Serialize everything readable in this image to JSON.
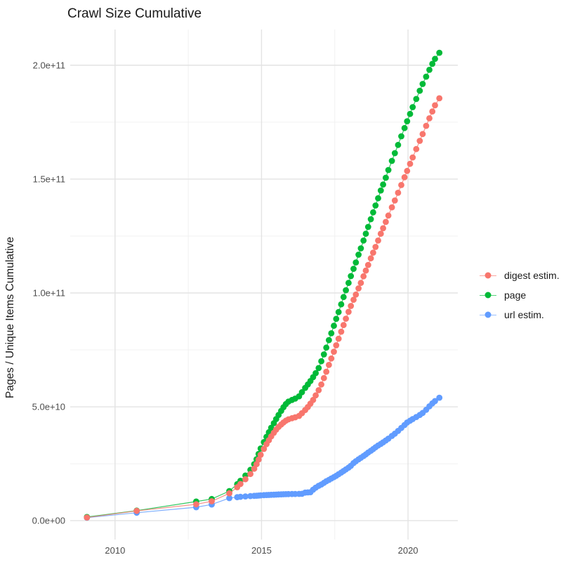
{
  "chart": {
    "title": "Crawl Size Cumulative",
    "y_axis_title": "Pages / Unique Items Cumulative"
  },
  "colors": {
    "grid_major": "#e3e3e3",
    "grid_minor": "#f0f0f0",
    "tick_label": "#4d4d4d",
    "title_text": "#1a1a1a",
    "background": "#ffffff"
  },
  "chart_data": {
    "type": "scatter",
    "title": "Crawl Size Cumulative",
    "xlabel": "",
    "ylabel": "Pages / Unique Items Cumulative",
    "value_unit": "1e9",
    "xlim": [
      2008.47,
      2021.7
    ],
    "ylim": [
      -8.3,
      215.7
    ],
    "grid": "on",
    "legend_position": "right",
    "x_major": [
      {
        "v": 2010,
        "label": "2010"
      },
      {
        "v": 2015,
        "label": "2015"
      },
      {
        "v": 2020,
        "label": "2020"
      }
    ],
    "x_minor": [
      2012.5,
      2017.5
    ],
    "y_major": [
      {
        "v": 0,
        "label": "0.0e+00"
      },
      {
        "v": 50,
        "label": "5.0e+10"
      },
      {
        "v": 100,
        "label": "1.0e+11"
      },
      {
        "v": 150,
        "label": "1.5e+11"
      },
      {
        "v": 200,
        "label": "2.0e+11"
      }
    ],
    "y_minor": [
      25,
      75,
      125,
      175
    ],
    "series": [
      {
        "id": "digest-estim",
        "label": "digest estim.",
        "color": "#F8766D",
        "z": 3,
        "points": [
          [
            2009.04,
            1.4
          ],
          [
            2010.74,
            4.3
          ],
          [
            2012.77,
            7.2
          ],
          [
            2013.3,
            8.5
          ],
          [
            2013.9,
            12.0
          ],
          [
            2014.17,
            14.7
          ],
          [
            2014.28,
            16.1
          ],
          [
            2014.45,
            18.2
          ],
          [
            2014.62,
            20.5
          ],
          [
            2014.75,
            22.8
          ],
          [
            2014.83,
            24.8
          ],
          [
            2014.9,
            26.8
          ],
          [
            2014.97,
            28.9
          ],
          [
            2015.08,
            31.5
          ],
          [
            2015.17,
            33.6
          ],
          [
            2015.25,
            35.3
          ],
          [
            2015.33,
            37.0
          ],
          [
            2015.42,
            38.6
          ],
          [
            2015.5,
            40.0
          ],
          [
            2015.58,
            41.2
          ],
          [
            2015.67,
            42.2
          ],
          [
            2015.75,
            43.1
          ],
          [
            2015.83,
            43.9
          ],
          [
            2015.92,
            44.5
          ],
          [
            2016.04,
            45.0
          ],
          [
            2016.15,
            45.4
          ],
          [
            2016.28,
            46.0
          ],
          [
            2016.38,
            47.2
          ],
          [
            2016.49,
            48.6
          ],
          [
            2016.58,
            49.9
          ],
          [
            2016.67,
            51.4
          ],
          [
            2016.76,
            53.0
          ],
          [
            2016.85,
            55.0
          ],
          [
            2016.95,
            57.3
          ],
          [
            2017.04,
            59.8
          ],
          [
            2017.13,
            62.6
          ],
          [
            2017.21,
            65.4
          ],
          [
            2017.3,
            68.4
          ],
          [
            2017.38,
            71.2
          ],
          [
            2017.47,
            74.2
          ],
          [
            2017.55,
            77.0
          ],
          [
            2017.63,
            79.9
          ],
          [
            2017.72,
            83.0
          ],
          [
            2017.8,
            85.9
          ],
          [
            2017.88,
            88.7
          ],
          [
            2017.97,
            91.7
          ],
          [
            2018.05,
            94.3
          ],
          [
            2018.14,
            97.0
          ],
          [
            2018.22,
            99.3
          ],
          [
            2018.31,
            102.0
          ],
          [
            2018.39,
            104.4
          ],
          [
            2018.48,
            107.3
          ],
          [
            2018.56,
            109.8
          ],
          [
            2018.64,
            112.3
          ],
          [
            2018.73,
            115.2
          ],
          [
            2018.81,
            117.7
          ],
          [
            2018.89,
            120.2
          ],
          [
            2018.98,
            123.0
          ],
          [
            2019.07,
            126.0
          ],
          [
            2019.15,
            128.4
          ],
          [
            2019.24,
            131.2
          ],
          [
            2019.33,
            134.0
          ],
          [
            2019.45,
            137.6
          ],
          [
            2019.55,
            140.6
          ],
          [
            2019.66,
            144.0
          ],
          [
            2019.77,
            147.4
          ],
          [
            2019.88,
            150.8
          ],
          [
            2019.97,
            153.6
          ],
          [
            2020.07,
            156.7
          ],
          [
            2020.16,
            159.5
          ],
          [
            2020.28,
            163.2
          ],
          [
            2020.4,
            166.8
          ],
          [
            2020.5,
            169.8
          ],
          [
            2020.62,
            173.4
          ],
          [
            2020.73,
            176.7
          ],
          [
            2020.83,
            179.7
          ],
          [
            2020.92,
            182.4
          ],
          [
            2021.07,
            185.5
          ]
        ]
      },
      {
        "id": "page",
        "label": "page",
        "color": "#00BA38",
        "z": 2,
        "points": [
          [
            2009.04,
            1.6
          ],
          [
            2010.74,
            4.4
          ],
          [
            2012.77,
            8.4
          ],
          [
            2013.3,
            9.5
          ],
          [
            2013.9,
            13.0
          ],
          [
            2014.17,
            16.0
          ],
          [
            2014.28,
            17.5
          ],
          [
            2014.45,
            19.8
          ],
          [
            2014.62,
            22.3
          ],
          [
            2014.75,
            24.8
          ],
          [
            2014.83,
            27.0
          ],
          [
            2014.9,
            29.3
          ],
          [
            2014.97,
            31.7
          ],
          [
            2015.08,
            34.5
          ],
          [
            2015.17,
            36.8
          ],
          [
            2015.25,
            38.8
          ],
          [
            2015.33,
            40.8
          ],
          [
            2015.42,
            42.8
          ],
          [
            2015.5,
            44.6
          ],
          [
            2015.58,
            46.4
          ],
          [
            2015.67,
            48.2
          ],
          [
            2015.75,
            49.8
          ],
          [
            2015.83,
            51.2
          ],
          [
            2015.92,
            52.3
          ],
          [
            2016.04,
            53.0
          ],
          [
            2016.15,
            53.6
          ],
          [
            2016.28,
            54.6
          ],
          [
            2016.38,
            56.4
          ],
          [
            2016.49,
            58.3
          ],
          [
            2016.58,
            59.8
          ],
          [
            2016.67,
            61.3
          ],
          [
            2016.76,
            63.0
          ],
          [
            2016.85,
            64.8
          ],
          [
            2016.95,
            67.0
          ],
          [
            2017.04,
            70.0
          ],
          [
            2017.13,
            73.0
          ],
          [
            2017.21,
            76.0
          ],
          [
            2017.3,
            79.3
          ],
          [
            2017.38,
            82.3
          ],
          [
            2017.47,
            85.6
          ],
          [
            2017.55,
            88.6
          ],
          [
            2017.63,
            91.6
          ],
          [
            2017.72,
            95.0
          ],
          [
            2017.8,
            98.2
          ],
          [
            2017.88,
            101.2
          ],
          [
            2017.97,
            104.4
          ],
          [
            2018.05,
            107.4
          ],
          [
            2018.14,
            110.6
          ],
          [
            2018.22,
            113.4
          ],
          [
            2018.31,
            116.8
          ],
          [
            2018.39,
            119.6
          ],
          [
            2018.48,
            123.0
          ],
          [
            2018.56,
            126.0
          ],
          [
            2018.64,
            129.0
          ],
          [
            2018.73,
            132.4
          ],
          [
            2018.81,
            135.4
          ],
          [
            2018.89,
            138.4
          ],
          [
            2018.98,
            141.6
          ],
          [
            2019.07,
            145.0
          ],
          [
            2019.15,
            147.6
          ],
          [
            2019.24,
            150.6
          ],
          [
            2019.33,
            154.0
          ],
          [
            2019.45,
            158.0
          ],
          [
            2019.55,
            161.4
          ],
          [
            2019.66,
            165.0
          ],
          [
            2019.77,
            168.8
          ],
          [
            2019.88,
            172.4
          ],
          [
            2019.97,
            175.4
          ],
          [
            2020.07,
            178.6
          ],
          [
            2020.16,
            181.6
          ],
          [
            2020.28,
            185.2
          ],
          [
            2020.4,
            188.8
          ],
          [
            2020.5,
            191.8
          ],
          [
            2020.62,
            195.0
          ],
          [
            2020.73,
            198.0
          ],
          [
            2020.83,
            200.6
          ],
          [
            2020.92,
            202.8
          ],
          [
            2021.07,
            205.5
          ]
        ]
      },
      {
        "id": "url-estim",
        "label": "url estim.",
        "color": "#619CFF",
        "z": 1,
        "points": [
          [
            2009.04,
            1.3
          ],
          [
            2010.74,
            3.5
          ],
          [
            2012.77,
            5.9
          ],
          [
            2013.3,
            7.1
          ],
          [
            2013.9,
            9.9
          ],
          [
            2014.17,
            10.3
          ],
          [
            2014.28,
            10.5
          ],
          [
            2014.45,
            10.65
          ],
          [
            2014.62,
            10.8
          ],
          [
            2014.75,
            10.9
          ],
          [
            2014.83,
            10.95
          ],
          [
            2014.9,
            11.0
          ],
          [
            2014.97,
            11.1
          ],
          [
            2015.08,
            11.2
          ],
          [
            2015.17,
            11.25
          ],
          [
            2015.25,
            11.3
          ],
          [
            2015.33,
            11.35
          ],
          [
            2015.42,
            11.4
          ],
          [
            2015.5,
            11.45
          ],
          [
            2015.58,
            11.5
          ],
          [
            2015.67,
            11.55
          ],
          [
            2015.75,
            11.6
          ],
          [
            2015.83,
            11.62
          ],
          [
            2015.92,
            11.65
          ],
          [
            2016.04,
            11.7
          ],
          [
            2016.15,
            11.72
          ],
          [
            2016.28,
            11.75
          ],
          [
            2016.38,
            11.8
          ],
          [
            2016.49,
            12.3
          ],
          [
            2016.58,
            12.4
          ],
          [
            2016.67,
            12.5
          ],
          [
            2016.76,
            13.6
          ],
          [
            2016.85,
            14.5
          ],
          [
            2016.95,
            15.3
          ],
          [
            2017.04,
            15.9
          ],
          [
            2017.13,
            16.6
          ],
          [
            2017.21,
            17.3
          ],
          [
            2017.3,
            17.9
          ],
          [
            2017.38,
            18.5
          ],
          [
            2017.47,
            19.1
          ],
          [
            2017.55,
            19.7
          ],
          [
            2017.63,
            20.4
          ],
          [
            2017.72,
            21.1
          ],
          [
            2017.8,
            21.8
          ],
          [
            2017.88,
            22.5
          ],
          [
            2017.97,
            23.3
          ],
          [
            2018.05,
            24.1
          ],
          [
            2018.14,
            25.3
          ],
          [
            2018.22,
            26.1
          ],
          [
            2018.31,
            26.9
          ],
          [
            2018.39,
            27.6
          ],
          [
            2018.48,
            28.4
          ],
          [
            2018.56,
            29.1
          ],
          [
            2018.64,
            29.9
          ],
          [
            2018.73,
            30.7
          ],
          [
            2018.81,
            31.4
          ],
          [
            2018.89,
            32.2
          ],
          [
            2018.98,
            33.0
          ],
          [
            2019.07,
            33.7
          ],
          [
            2019.15,
            34.4
          ],
          [
            2019.24,
            35.2
          ],
          [
            2019.33,
            36.0
          ],
          [
            2019.45,
            37.2
          ],
          [
            2019.55,
            38.2
          ],
          [
            2019.66,
            39.4
          ],
          [
            2019.77,
            40.7
          ],
          [
            2019.88,
            42.0
          ],
          [
            2019.97,
            43.1
          ],
          [
            2020.07,
            43.9
          ],
          [
            2020.16,
            44.6
          ],
          [
            2020.28,
            45.5
          ],
          [
            2020.4,
            46.4
          ],
          [
            2020.5,
            47.3
          ],
          [
            2020.62,
            48.7
          ],
          [
            2020.73,
            50.2
          ],
          [
            2020.83,
            51.5
          ],
          [
            2020.92,
            52.5
          ],
          [
            2021.07,
            54.0
          ]
        ]
      }
    ]
  }
}
